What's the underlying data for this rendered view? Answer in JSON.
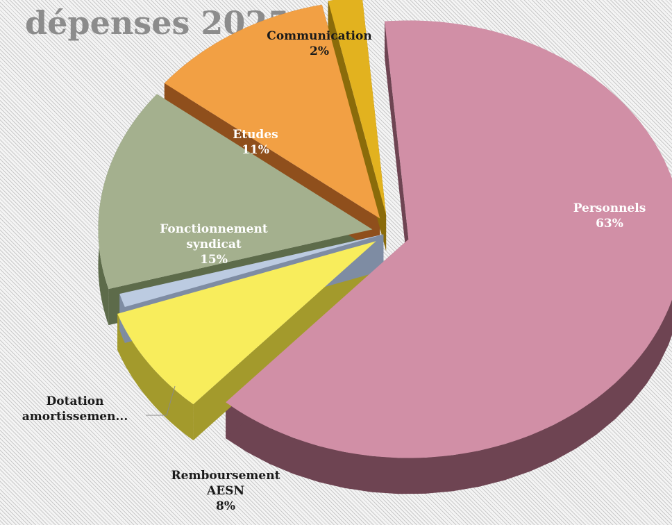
{
  "chart_data": {
    "type": "pie",
    "title": "dépenses 2025",
    "slices": [
      {
        "label": "Personnels",
        "value": 63,
        "value_label": "63%",
        "color": "#d18fa6",
        "side": "#6e4452"
      },
      {
        "label": "Remboursement AESN",
        "value": 8,
        "value_label": "8%",
        "color": "#f8ed5c",
        "side": "#a39a2c"
      },
      {
        "label": "Dotation amortissemen...",
        "value": 1,
        "value_label": "",
        "color": "#bccbe1",
        "side": "#7e8ca3"
      },
      {
        "label": "Fonctionnement syndicat",
        "value": 15,
        "value_label": "15%",
        "color": "#a4b08e",
        "side": "#5d6b4a"
      },
      {
        "label": "Etudes",
        "value": 11,
        "value_label": "11%",
        "color": "#f2a044",
        "side": "#8f4f1c"
      },
      {
        "label": "Communication",
        "value": 2,
        "value_label": "2%",
        "color": "#e2b21f",
        "side": "#8a6b0a"
      }
    ],
    "legend": "none",
    "exploded": true,
    "style": "3d"
  }
}
